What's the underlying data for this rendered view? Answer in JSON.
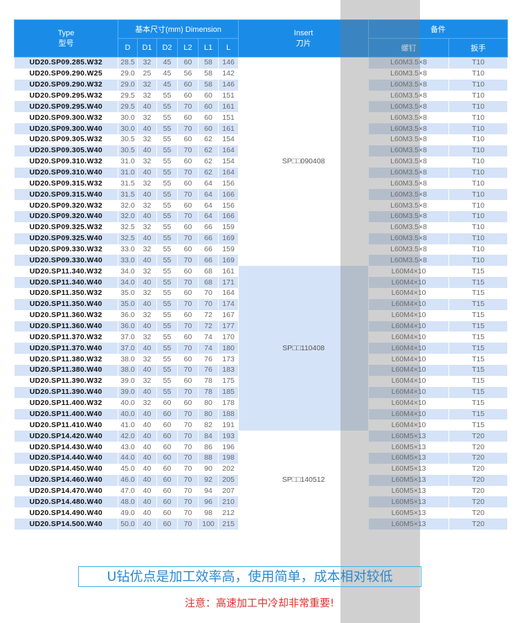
{
  "header": {
    "type_en": "Type",
    "type_cn": "型号",
    "dimension": "基本尺寸(mm)  Dimension",
    "dim_cols": [
      "D",
      "D1",
      "D2",
      "L2",
      "L1",
      "L"
    ],
    "insert_en": "Insert",
    "insert_cn": "刀片",
    "parts": "备件",
    "screw": "螺钉",
    "wrench": "扳手"
  },
  "groups": [
    {
      "insert": "SP□□090408",
      "screw": "L60M3.5×8",
      "wrench": "T10"
    },
    {
      "insert": "SP□□110408",
      "screw": "L60M4×10",
      "wrench": "T15"
    },
    {
      "insert": "SP□□140512",
      "screw": "L60M5×13",
      "wrench": "T20"
    }
  ],
  "rows": [
    [
      "UD20.SP09.285.W32",
      "28.5",
      "32",
      "45",
      "60",
      "58",
      "146",
      0
    ],
    [
      "UD20.SP09.290.W25",
      "29.0",
      "25",
      "45",
      "56",
      "58",
      "142",
      0
    ],
    [
      "UD20.SP09.290.W32",
      "29.0",
      "32",
      "45",
      "60",
      "58",
      "146",
      0
    ],
    [
      "UD20.SP09.295.W32",
      "29.5",
      "32",
      "55",
      "60",
      "60",
      "151",
      0
    ],
    [
      "UD20.SP09.295.W40",
      "29.5",
      "40",
      "55",
      "70",
      "60",
      "161",
      0
    ],
    [
      "UD20.SP09.300.W32",
      "30.0",
      "32",
      "55",
      "60",
      "60",
      "151",
      0
    ],
    [
      "UD20.SP09.300.W40",
      "30.0",
      "40",
      "55",
      "70",
      "60",
      "161",
      0
    ],
    [
      "UD20.SP09.305.W32",
      "30.5",
      "32",
      "55",
      "60",
      "62",
      "154",
      0
    ],
    [
      "UD20.SP09.305.W40",
      "30.5",
      "40",
      "55",
      "70",
      "62",
      "164",
      0
    ],
    [
      "UD20.SP09.310.W32",
      "31.0",
      "32",
      "55",
      "60",
      "62",
      "154",
      0
    ],
    [
      "UD20.SP09.310.W40",
      "31.0",
      "40",
      "55",
      "70",
      "62",
      "164",
      0
    ],
    [
      "UD20.SP09.315.W32",
      "31.5",
      "32",
      "55",
      "60",
      "64",
      "156",
      0
    ],
    [
      "UD20.SP09.315.W40",
      "31.5",
      "40",
      "55",
      "70",
      "64",
      "166",
      0
    ],
    [
      "UD20.SP09.320.W32",
      "32.0",
      "32",
      "55",
      "60",
      "64",
      "156",
      0
    ],
    [
      "UD20.SP09.320.W40",
      "32.0",
      "40",
      "55",
      "70",
      "64",
      "166",
      0
    ],
    [
      "UD20.SP09.325.W32",
      "32.5",
      "32",
      "55",
      "60",
      "66",
      "159",
      0
    ],
    [
      "UD20.SP09.325.W40",
      "32.5",
      "40",
      "55",
      "70",
      "66",
      "169",
      0
    ],
    [
      "UD20.SP09.330.W32",
      "33.0",
      "32",
      "55",
      "60",
      "66",
      "159",
      0
    ],
    [
      "UD20.SP09.330.W40",
      "33.0",
      "40",
      "55",
      "70",
      "66",
      "169",
      0
    ],
    [
      "UD20.SP11.340.W32",
      "34.0",
      "32",
      "55",
      "60",
      "68",
      "161",
      1
    ],
    [
      "UD20.SP11.340.W40",
      "34.0",
      "40",
      "55",
      "70",
      "68",
      "171",
      1
    ],
    [
      "UD20.SP11.350.W32",
      "35.0",
      "32",
      "55",
      "60",
      "70",
      "164",
      1
    ],
    [
      "UD20.SP11.350.W40",
      "35.0",
      "40",
      "55",
      "70",
      "70",
      "174",
      1
    ],
    [
      "UD20.SP11.360.W32",
      "36.0",
      "32",
      "55",
      "60",
      "72",
      "167",
      1
    ],
    [
      "UD20.SP11.360.W40",
      "36.0",
      "40",
      "55",
      "70",
      "72",
      "177",
      1
    ],
    [
      "UD20.SP11.370.W32",
      "37.0",
      "32",
      "55",
      "60",
      "74",
      "170",
      1
    ],
    [
      "UD20.SP11.370.W40",
      "37.0",
      "40",
      "55",
      "70",
      "74",
      "180",
      1
    ],
    [
      "UD20.SP11.380.W32",
      "38.0",
      "32",
      "55",
      "60",
      "76",
      "173",
      1
    ],
    [
      "UD20.SP11.380.W40",
      "38.0",
      "40",
      "55",
      "70",
      "76",
      "183",
      1
    ],
    [
      "UD20.SP11.390.W32",
      "39.0",
      "32",
      "55",
      "60",
      "78",
      "175",
      1
    ],
    [
      "UD20.SP11.390.W40",
      "39.0",
      "40",
      "55",
      "70",
      "78",
      "185",
      1
    ],
    [
      "UD20.SP11.400.W32",
      "40.0",
      "32",
      "60",
      "60",
      "80",
      "178",
      1
    ],
    [
      "UD20.SP11.400.W40",
      "40.0",
      "40",
      "60",
      "70",
      "80",
      "188",
      1
    ],
    [
      "UD20.SP11.410.W40",
      "41.0",
      "40",
      "60",
      "70",
      "82",
      "191",
      1
    ],
    [
      "UD20.SP14.420.W40",
      "42.0",
      "40",
      "60",
      "70",
      "84",
      "193",
      2
    ],
    [
      "UD20.SP14.430.W40",
      "43.0",
      "40",
      "60",
      "70",
      "86",
      "196",
      2
    ],
    [
      "UD20.SP14.440.W40",
      "44.0",
      "40",
      "60",
      "70",
      "88",
      "198",
      2
    ],
    [
      "UD20.SP14.450.W40",
      "45.0",
      "40",
      "60",
      "70",
      "90",
      "202",
      2
    ],
    [
      "UD20.SP14.460.W40",
      "46.0",
      "40",
      "60",
      "70",
      "92",
      "205",
      2
    ],
    [
      "UD20.SP14.470.W40",
      "47.0",
      "40",
      "60",
      "70",
      "94",
      "207",
      2
    ],
    [
      "UD20.SP14.480.W40",
      "48.0",
      "40",
      "60",
      "70",
      "96",
      "210",
      2
    ],
    [
      "UD20.SP14.490.W40",
      "49.0",
      "40",
      "60",
      "70",
      "98",
      "212",
      2
    ],
    [
      "UD20.SP14.500.W40",
      "50.0",
      "40",
      "60",
      "70",
      "100",
      "215",
      2
    ]
  ],
  "footer": {
    "slogan": "U钻优点是加工效率高，使用简单，成本相对较低",
    "note": "注意：高速加工中冷却非常重要!"
  },
  "colors": {
    "header": "#1a8ce8",
    "stripe": "#d5e3f8",
    "slogan": "#2a8ad0",
    "note": "#e03030"
  }
}
